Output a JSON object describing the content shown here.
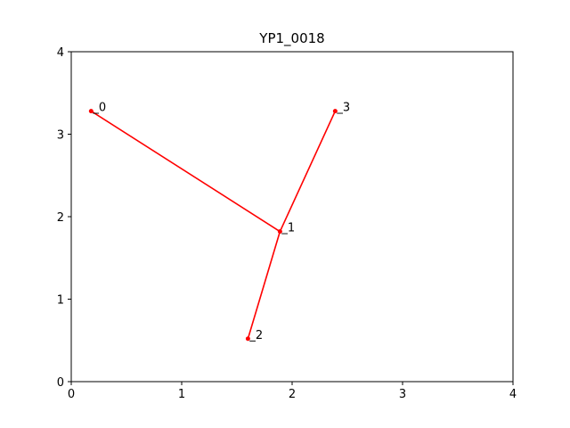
{
  "chart_data": {
    "type": "line",
    "title": "YP1_0018",
    "xlabel": "",
    "ylabel": "",
    "xlim": [
      0,
      4
    ],
    "ylim": [
      0,
      4
    ],
    "x_ticks": [
      "0",
      "1",
      "2",
      "3",
      "4"
    ],
    "y_ticks": [
      "0",
      "1",
      "2",
      "3",
      "4"
    ],
    "grid": false,
    "line_color": "#ff0000",
    "points": [
      {
        "label": "0",
        "x": 0.18,
        "y": 3.28
      },
      {
        "label": "1",
        "x": 1.89,
        "y": 1.82
      },
      {
        "label": "2",
        "x": 1.6,
        "y": 0.52
      },
      {
        "label": "3",
        "x": 2.39,
        "y": 3.28
      }
    ],
    "edges": [
      [
        0,
        1
      ],
      [
        1,
        2
      ],
      [
        1,
        3
      ]
    ]
  }
}
